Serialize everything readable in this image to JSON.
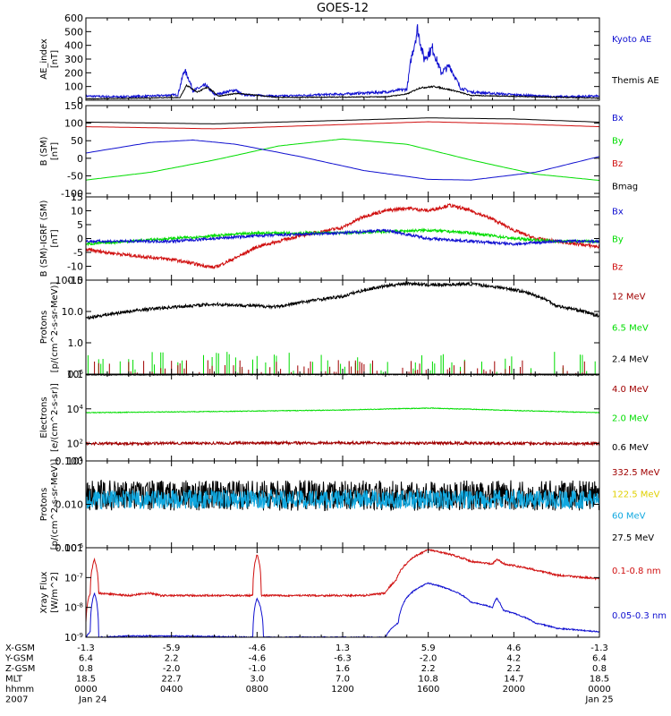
{
  "title": "GOES-12",
  "colors": {
    "black": "#000000",
    "blue": "#1010d0",
    "green": "#00dd00",
    "red": "#d01010",
    "darkred": "#a00000",
    "cyan": "#10a8e0",
    "yellow": "#e0d000"
  },
  "chart_data": [
    {
      "type": "line",
      "panel": "ae-index",
      "ylabel_lines": [
        "AE_index",
        "[nT]"
      ],
      "scale": "linear",
      "ylim": [
        0,
        600
      ],
      "yticks": [
        "0",
        "100",
        "200",
        "300",
        "400",
        "500",
        "600"
      ],
      "legend": [
        "Kyoto AE",
        "Themis AE"
      ],
      "legend_colors": [
        "blue",
        "black"
      ],
      "series": [
        {
          "name": "Kyoto AE",
          "color": "blue",
          "base": 20,
          "noise": 14,
          "points": [
            [
              0,
              30
            ],
            [
              1.5,
              25
            ],
            [
              3,
              30
            ],
            [
              4.3,
              40
            ],
            [
              4.6,
              220
            ],
            [
              4.8,
              160
            ],
            [
              5.0,
              70
            ],
            [
              5.6,
              110
            ],
            [
              6.0,
              40
            ],
            [
              7.0,
              75
            ],
            [
              7.3,
              40
            ],
            [
              9,
              30
            ],
            [
              12,
              45
            ],
            [
              14,
              60
            ],
            [
              15.0,
              80
            ],
            [
              15.2,
              300
            ],
            [
              15.5,
              520
            ],
            [
              15.8,
              300
            ],
            [
              16.2,
              380
            ],
            [
              16.6,
              200
            ],
            [
              17.0,
              250
            ],
            [
              17.5,
              90
            ],
            [
              18,
              60
            ],
            [
              20,
              40
            ],
            [
              22,
              25
            ],
            [
              24,
              30
            ]
          ]
        },
        {
          "name": "Themis AE",
          "color": "black",
          "base": 12,
          "noise": 6,
          "points": [
            [
              0,
              10
            ],
            [
              4.4,
              20
            ],
            [
              4.7,
              110
            ],
            [
              5.2,
              60
            ],
            [
              5.7,
              95
            ],
            [
              6.2,
              30
            ],
            [
              7.1,
              50
            ],
            [
              9,
              20
            ],
            [
              14,
              25
            ],
            [
              15.0,
              45
            ],
            [
              15.6,
              90
            ],
            [
              16.3,
              100
            ],
            [
              17.2,
              70
            ],
            [
              18,
              35
            ],
            [
              24,
              15
            ]
          ]
        }
      ]
    },
    {
      "type": "line",
      "panel": "b-field",
      "ylabel_lines": [
        "B (SM)",
        "[nT]"
      ],
      "scale": "linear",
      "ylim": [
        -110,
        150
      ],
      "yticks": [
        "-100",
        "-50",
        "0",
        "50",
        "100",
        "150"
      ],
      "legend": [
        "Bx",
        "By",
        "Bz",
        "Bmag"
      ],
      "legend_colors": [
        "blue",
        "green",
        "red",
        "black"
      ],
      "series": [
        {
          "name": "Bmag",
          "color": "black",
          "points": [
            [
              0,
              103
            ],
            [
              6,
              98
            ],
            [
              12,
              108
            ],
            [
              16,
              115
            ],
            [
              20,
              112
            ],
            [
              24,
              103
            ]
          ]
        },
        {
          "name": "Bz",
          "color": "red",
          "points": [
            [
              0,
              90
            ],
            [
              6,
              84
            ],
            [
              12,
              96
            ],
            [
              16,
              104
            ],
            [
              20,
              98
            ],
            [
              24,
              90
            ]
          ]
        },
        {
          "name": "By",
          "color": "green",
          "points": [
            [
              0,
              -62
            ],
            [
              3,
              -40
            ],
            [
              6,
              -5
            ],
            [
              9,
              35
            ],
            [
              12,
              55
            ],
            [
              15,
              40
            ],
            [
              18,
              -5
            ],
            [
              21,
              -45
            ],
            [
              24,
              -63
            ]
          ]
        },
        {
          "name": "Bx",
          "color": "blue",
          "points": [
            [
              0,
              15
            ],
            [
              3,
              45
            ],
            [
              5,
              52
            ],
            [
              7,
              40
            ],
            [
              10,
              5
            ],
            [
              13,
              -35
            ],
            [
              16,
              -60
            ],
            [
              18,
              -62
            ],
            [
              21,
              -40
            ],
            [
              24,
              5
            ]
          ]
        }
      ]
    },
    {
      "type": "line",
      "panel": "b-minus-igrf",
      "ylabel_lines": [
        "B (SM)-IGRF (SM)",
        "[nT]"
      ],
      "scale": "linear",
      "ylim": [
        -15,
        15
      ],
      "yticks": [
        "-15",
        "-10",
        "-5",
        "0",
        "5",
        "10",
        "15"
      ],
      "legend": [
        "Bx",
        "By",
        "Bz"
      ],
      "legend_colors": [
        "blue",
        "green",
        "red"
      ],
      "series": [
        {
          "name": "Bz",
          "color": "red",
          "noise": 0.6,
          "points": [
            [
              0,
              -4
            ],
            [
              2,
              -6
            ],
            [
              4,
              -7.5
            ],
            [
              5,
              -9
            ],
            [
              6,
              -10.5
            ],
            [
              7,
              -7
            ],
            [
              8,
              -3
            ],
            [
              10,
              1
            ],
            [
              12,
              4
            ],
            [
              13,
              8
            ],
            [
              14,
              10
            ],
            [
              15,
              11
            ],
            [
              16,
              10
            ],
            [
              17,
              12
            ],
            [
              18,
              10
            ],
            [
              19,
              7
            ],
            [
              20,
              3
            ],
            [
              21,
              0
            ],
            [
              22,
              -1
            ],
            [
              23,
              -2
            ],
            [
              24,
              -3
            ]
          ]
        },
        {
          "name": "By",
          "color": "green",
          "noise": 0.5,
          "points": [
            [
              0,
              -2
            ],
            [
              4,
              0
            ],
            [
              8,
              2
            ],
            [
              12,
              2
            ],
            [
              16,
              3
            ],
            [
              18,
              2
            ],
            [
              20,
              0
            ],
            [
              22,
              -1
            ],
            [
              24,
              -1
            ]
          ]
        },
        {
          "name": "Bx",
          "color": "blue",
          "noise": 0.5,
          "points": [
            [
              0,
              -1
            ],
            [
              4,
              -1
            ],
            [
              8,
              1
            ],
            [
              12,
              2
            ],
            [
              14,
              3
            ],
            [
              16,
              0
            ],
            [
              18,
              -1
            ],
            [
              20,
              -2
            ],
            [
              22,
              -1
            ],
            [
              24,
              -1
            ]
          ]
        }
      ]
    },
    {
      "type": "line",
      "panel": "protons-high",
      "ylabel_lines": [
        "Protons",
        "[p/(cm^2-s-sr-MeV)]"
      ],
      "scale": "log",
      "ylim": [
        0.1,
        100
      ],
      "yticks": [
        "0.1",
        "1.0",
        "10.0",
        "100.0"
      ],
      "legend": [
        "12 MeV",
        "6.5 MeV",
        "2.4 MeV"
      ],
      "legend_colors": [
        "darkred",
        "green",
        "black"
      ],
      "series": [
        {
          "name": "2.4 MeV",
          "color": "black",
          "noise_log": 0.05,
          "points": [
            [
              0,
              6
            ],
            [
              3,
              12
            ],
            [
              6,
              17
            ],
            [
              9,
              14
            ],
            [
              12,
              30
            ],
            [
              14,
              65
            ],
            [
              15,
              80
            ],
            [
              16,
              70
            ],
            [
              18,
              75
            ],
            [
              20,
              50
            ],
            [
              22,
              15
            ],
            [
              24,
              7
            ]
          ]
        },
        {
          "name": "6.5 MeV",
          "color": "green",
          "spiky": true,
          "points": [
            [
              0,
              0.1
            ],
            [
              24,
              0.1
            ]
          ]
        },
        {
          "name": "12 MeV",
          "color": "darkred",
          "spiky": true,
          "points": [
            [
              0,
              0.1
            ],
            [
              24,
              0.1
            ]
          ]
        }
      ]
    },
    {
      "type": "line",
      "panel": "electrons",
      "ylabel_lines": [
        "Electrons",
        "[e/(cm^2-s-sr)]"
      ],
      "scale": "log",
      "ylim": [
        10,
        1000000
      ],
      "yticks": [
        "10^1",
        "10^2",
        "10^4",
        "10^6"
      ],
      "legend": [
        "4.0 MeV",
        "2.0 MeV",
        "0.6 MeV"
      ],
      "legend_colors": [
        "darkred",
        "green",
        "black"
      ],
      "series": [
        {
          "name": "0.6 MeV",
          "color": "black",
          "noise_log": 0.02,
          "points": [
            [
              0,
              900000
            ],
            [
              12,
              950000
            ],
            [
              24,
              900000
            ]
          ]
        },
        {
          "name": "2.0 MeV",
          "color": "green",
          "noise_log": 0.02,
          "points": [
            [
              0,
              6000
            ],
            [
              6,
              7000
            ],
            [
              12,
              8500
            ],
            [
              16,
              11000
            ],
            [
              20,
              8000
            ],
            [
              24,
              6000
            ]
          ]
        },
        {
          "name": "4.0 MeV",
          "color": "darkred",
          "noise_log": 0.08,
          "points": [
            [
              0,
              100
            ],
            [
              12,
              110
            ],
            [
              24,
              100
            ]
          ]
        }
      ]
    },
    {
      "type": "line",
      "panel": "protons-low",
      "ylabel_lines": [
        "Protons",
        "[p/(cm^2-s-sr-MeV)]"
      ],
      "scale": "log",
      "ylim": [
        0.001,
        0.1
      ],
      "yticks": [
        "0.001",
        "0.010",
        "0.100"
      ],
      "legend": [
        "332.5 MeV",
        "122.5 MeV",
        "60 MeV",
        "27.5 MeV"
      ],
      "legend_colors": [
        "darkred",
        "yellow",
        "cyan",
        "black"
      ],
      "series": [
        {
          "name": "27.5 MeV",
          "color": "black",
          "noise_log": 0.35,
          "points": [
            [
              0,
              0.016
            ],
            [
              24,
              0.016
            ]
          ]
        },
        {
          "name": "60 MeV",
          "color": "cyan",
          "noise_log": 0.22,
          "points": [
            [
              0,
              0.013
            ],
            [
              24,
              0.013
            ]
          ]
        }
      ]
    },
    {
      "type": "line",
      "panel": "xray",
      "ylabel_lines": [
        "Xray Flux",
        "[W/m^2]"
      ],
      "scale": "log",
      "ylim": [
        1e-09,
        1e-06
      ],
      "yticks": [
        "10^-9",
        "10^-8",
        "10^-7",
        "10^-6"
      ],
      "legend": [
        "0.1-0.8 nm",
        "0.05-0.3 nm"
      ],
      "legend_colors": [
        "red",
        "blue"
      ],
      "series": [
        {
          "name": "0.1-0.8 nm",
          "color": "red",
          "noise_log": 0.03,
          "points": [
            [
              0,
              3e-09
            ],
            [
              0.2,
              3e-08
            ],
            [
              0.4,
              4e-07
            ],
            [
              0.6,
              3e-08
            ],
            [
              2,
              2.5e-08
            ],
            [
              3,
              3e-08
            ],
            [
              3.5,
              2.5e-08
            ],
            [
              7.8,
              2.5e-08
            ],
            [
              8,
              6e-07
            ],
            [
              8.2,
              2.5e-08
            ],
            [
              13,
              2.5e-08
            ],
            [
              14,
              3e-08
            ],
            [
              14.5,
              8e-08
            ],
            [
              15,
              3e-07
            ],
            [
              16,
              8.5e-07
            ],
            [
              17,
              6e-07
            ],
            [
              18,
              3.5e-07
            ],
            [
              19,
              2.8e-07
            ],
            [
              19.2,
              4e-07
            ],
            [
              19.6,
              2.8e-07
            ],
            [
              21,
              1.8e-07
            ],
            [
              22,
              1.2e-07
            ],
            [
              24,
              9e-08
            ]
          ]
        },
        {
          "name": "0.05-0.3 nm",
          "color": "blue",
          "noise_log": 0.02,
          "points": [
            [
              0,
              1e-09
            ],
            [
              0.2,
              1.5e-09
            ],
            [
              0.4,
              3e-08
            ],
            [
              0.6,
              1e-09
            ],
            [
              2,
              1.1e-09
            ],
            [
              4,
              1.1e-09
            ],
            [
              7.8,
              1e-09
            ],
            [
              8,
              2e-08
            ],
            [
              8.3,
              1e-09
            ],
            [
              14,
              1e-09
            ],
            [
              14.6,
              3e-09
            ],
            [
              15.2,
              3e-08
            ],
            [
              16,
              6.5e-08
            ],
            [
              17,
              4e-08
            ],
            [
              18,
              1.5e-08
            ],
            [
              19,
              1e-08
            ],
            [
              19.2,
              2e-08
            ],
            [
              19.5,
              8e-09
            ],
            [
              21,
              3e-09
            ],
            [
              22,
              2e-09
            ],
            [
              24,
              1.5e-09
            ]
          ]
        }
      ]
    }
  ],
  "xaxis": {
    "row_labels": [
      "X-GSM",
      "Y-GSM",
      "Z-GSM",
      "MLT",
      "hhmm",
      "2007"
    ],
    "columns": [
      {
        "values": [
          "-1.3",
          "6.4",
          "0.8",
          "18.5",
          "0000",
          "Jan 24"
        ]
      },
      {
        "values": [
          "-5.9",
          "2.2",
          "-2.0",
          "22.7",
          "0400",
          ""
        ]
      },
      {
        "values": [
          "-4.6",
          "-4.6",
          "-1.0",
          "3.0",
          "0800",
          ""
        ]
      },
      {
        "values": [
          "1.3",
          "-6.3",
          "1.6",
          "7.0",
          "1200",
          ""
        ]
      },
      {
        "values": [
          "5.9",
          "-2.0",
          "2.2",
          "10.8",
          "1600",
          ""
        ]
      },
      {
        "values": [
          "4.6",
          "4.2",
          "2.2",
          "14.7",
          "2000",
          ""
        ]
      },
      {
        "values": [
          "-1.3",
          "6.4",
          "0.8",
          "18.5",
          "0000",
          "Jan 25"
        ]
      }
    ]
  }
}
